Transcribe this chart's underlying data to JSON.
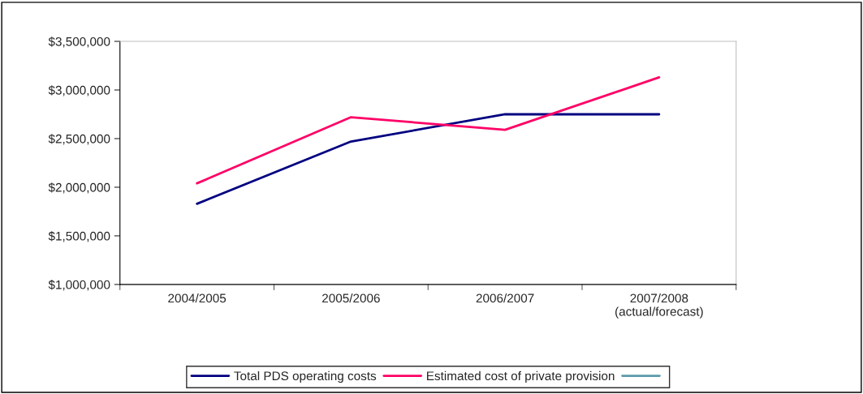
{
  "chart_data": {
    "type": "line",
    "categories": [
      "2004/2005",
      "2005/2006",
      "2006/2007",
      "2007/2008\n(actual/forecast)"
    ],
    "series": [
      {
        "name": "Total PDS operating costs",
        "color": "#000080",
        "values": [
          1830000,
          2470000,
          2750000,
          2750000
        ]
      },
      {
        "name": "Estimated cost of private provision",
        "color": "#ff0066",
        "values": [
          2040000,
          2720000,
          2590000,
          3130000
        ]
      },
      {
        "color": "#5b9bab",
        "values": [
          null,
          null,
          null,
          null
        ]
      }
    ],
    "ylim": [
      1000000,
      3500000
    ],
    "yticks": [
      {
        "value": 1000000,
        "label": "$1,000,000"
      },
      {
        "value": 1500000,
        "label": "$1,500,000"
      },
      {
        "value": 2000000,
        "label": "$2,000,000"
      },
      {
        "value": 2500000,
        "label": "$2,500,000"
      },
      {
        "value": 3000000,
        "label": "$3,000,000"
      },
      {
        "value": 3500000,
        "label": "$3,500,000"
      }
    ],
    "grid": false,
    "legend": "bottom",
    "marker": "none",
    "line_style": "solid"
  }
}
